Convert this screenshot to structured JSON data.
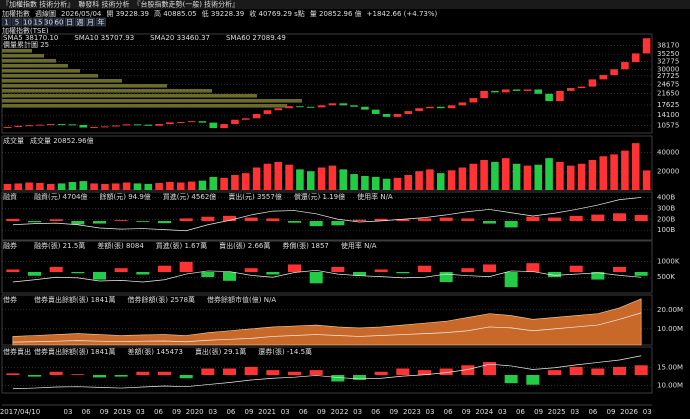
{
  "header": {
    "menu": [
      "『加權指數 技術分析』",
      "聯發科 技術分析",
      "『台股指數走勢(一般) 技術分析』"
    ],
    "title": "加權指數",
    "period": "週線圖",
    "date": "2026/05/04",
    "quote": [
      "開 39228.39",
      "高 40885.05",
      "低 39228.39",
      "收 40769.29 s點",
      "量 20852.96 億"
    ],
    "change": "+1842.66 (+4.73%)",
    "buttons": [
      "1",
      "5",
      "10",
      "15",
      "30",
      "60",
      "日",
      "週",
      "月",
      "年"
    ],
    "symbol": "加權指數(TSE)"
  },
  "chart_data": {
    "type": "candlestick",
    "sma": [
      {
        "text": "SMA5 38170.10",
        "color": "#ff7f50"
      },
      {
        "text": "SMA10 35707.93",
        "color": "#66ccff"
      },
      {
        "text": "SMA20 33460.37",
        "color": "#33dd33"
      },
      {
        "text": "SMA60 27089.49",
        "color": "#ffdd33"
      }
    ],
    "profile_label": "價量累計圖 25",
    "profile": [
      10,
      14,
      18,
      22,
      26,
      32,
      40,
      55,
      70,
      85,
      100,
      95
    ],
    "profile_color": "#6b6b2a",
    "ylim": [
      7900,
      42240
    ],
    "yticks": [
      38170,
      35250,
      32775,
      30000,
      27725,
      24675,
      21650,
      17625,
      14100,
      10575
    ],
    "up_color": "#ff3333",
    "down_color": "#22cc44",
    "values": [
      10000,
      10400,
      10600,
      10800,
      11000,
      10900,
      10700,
      9800,
      10000,
      10200,
      10500,
      10900,
      10800,
      10400,
      11000,
      11600,
      11700,
      12000,
      11500,
      9600,
      11000,
      12500,
      13000,
      14500,
      15800,
      16500,
      17200,
      17000,
      16800,
      17500,
      18200,
      17500,
      17000,
      16000,
      14500,
      13500,
      14500,
      15500,
      16500,
      17000,
      16500,
      17500,
      18500,
      20000,
      22500,
      22000,
      23000,
      22500,
      23000,
      21500,
      19000,
      22500,
      23500,
      24000,
      26500,
      28000,
      30000,
      32500,
      35500,
      40769.29
    ],
    "volume": {
      "label": "成交量",
      "legend": "成交量 20852.96億",
      "ylim": [
        0,
        57600
      ],
      "yticks": [
        40000,
        20000
      ],
      "values": [
        6500,
        7000,
        8000,
        7500,
        6500,
        7000,
        8500,
        9500,
        7000,
        6500,
        7000,
        8000,
        7000,
        6500,
        7500,
        8500,
        8000,
        9000,
        10000,
        14000,
        13000,
        16000,
        18000,
        24000,
        28000,
        30000,
        27000,
        22000,
        20000,
        24000,
        26000,
        22000,
        17000,
        15000,
        14000,
        12000,
        13000,
        16000,
        20000,
        22000,
        18000,
        21000,
        24000,
        28000,
        32000,
        30000,
        34000,
        28000,
        26000,
        27000,
        34000,
        30000,
        26000,
        28000,
        32000,
        36000,
        38000,
        42000,
        50000,
        20852.96
      ]
    },
    "panels": [
      {
        "label": "融資",
        "legend": [
          "融資(元) 4704億",
          "餘額(元) 94.9億",
          "買進(元) 4562億",
          "賣出(元) 3557億",
          "償還(元) 1.19億",
          "使用率 N/A"
        ],
        "legend_colors": [
          "#ff5555",
          "#ffdd33",
          "#ff55ff",
          "#ffdd33",
          "#ff5555",
          "#3399ff"
        ],
        "ylim": [
          10,
          450
        ],
        "yticks": [
          {
            "value": 400,
            "label": "400B"
          },
          {
            "value": 300,
            "label": "300B"
          },
          {
            "value": 200,
            "label": "200B"
          },
          {
            "value": 100,
            "label": "100B"
          }
        ],
        "line": [
          150,
          160,
          165,
          150,
          120,
          110,
          115,
          105,
          95,
          150,
          190,
          240,
          275,
          280,
          250,
          200,
          175,
          185,
          200,
          215,
          240,
          270,
          290,
          260,
          230,
          255,
          290,
          330,
          380,
          400
        ],
        "bar_lim": 40,
        "bars": [
          5,
          -3,
          4,
          -8,
          -6,
          2,
          -2,
          -5,
          6,
          10,
          12,
          8,
          6,
          -4,
          -12,
          -10,
          3,
          5,
          4,
          6,
          8,
          6,
          -6,
          -15,
          10,
          8,
          12,
          15,
          18,
          14
        ]
      },
      {
        "label": "融券",
        "legend": [
          "融券(張) 21.5萬",
          "差額(張) 8084",
          "買進(張) 1.67萬",
          "賣出(張) 2.66萬",
          "券償(張) 1857",
          "使用率 N/A"
        ],
        "legend_colors": [
          "#ff5555",
          "#ffdd33",
          "#ff55ff",
          "#ffdd33",
          "#ff5555",
          "#3399ff"
        ],
        "ylim": [
          0,
          1650
        ],
        "yticks": [
          {
            "value": 1000,
            "label": "1000K"
          },
          {
            "value": 500,
            "label": "500K"
          }
        ],
        "line": [
          350,
          420,
          500,
          480,
          380,
          400,
          350,
          420,
          600,
          700,
          680,
          560,
          500,
          650,
          720,
          600,
          550,
          520,
          480,
          500,
          600,
          550,
          520,
          700,
          680,
          560,
          600,
          640,
          560,
          500
        ],
        "bar_lim": 150,
        "bars": [
          20,
          -30,
          40,
          -10,
          -60,
          30,
          -20,
          50,
          80,
          -40,
          -70,
          30,
          -20,
          60,
          -90,
          40,
          -30,
          20,
          -10,
          50,
          -80,
          30,
          60,
          -120,
          70,
          -40,
          50,
          -60,
          40,
          -30
        ]
      },
      {
        "label": "借券",
        "legend": [
          "借券賣出餘額(張) 1841萬",
          "借券餘額(張) 2578萬",
          "借券餘額市值(億) N/A"
        ],
        "legend_colors": [
          "#ff5555",
          "#ffdd33",
          "#ff55ff"
        ],
        "ylim": [
          1.5,
          27.8
        ],
        "yticks": [
          {
            "value": 20,
            "label": "20.00M"
          },
          {
            "value": 10,
            "label": "10.00M"
          }
        ],
        "area": [
          6,
          6.5,
          7,
          7.5,
          7,
          6.5,
          6.8,
          7,
          6.5,
          8,
          9,
          10,
          11,
          11.5,
          12,
          11,
          10.5,
          11,
          12,
          13,
          14,
          16,
          18,
          17,
          15,
          16,
          17,
          18,
          21,
          25.8
        ],
        "area_color": "#c8692a",
        "line": [
          3,
          3.2,
          3.5,
          3.8,
          3.5,
          3.3,
          3.5,
          3.6,
          3.2,
          4,
          4.5,
          5,
          6,
          6.5,
          7,
          6.5,
          6,
          6.5,
          7,
          7.5,
          8,
          9,
          11,
          10.5,
          9,
          10,
          11,
          12,
          15,
          18.4
        ]
      },
      {
        "label": "借券賣出",
        "legend": [
          "借券賣出餘額(張) 1841萬",
          "差額(張) 145473",
          "賣出(張) 29.1萬",
          "還券(張) -14.5萬"
        ],
        "legend_colors": [
          "#ff5555",
          "#ffdd33",
          "#ff5555",
          "#ffdd33"
        ],
        "ylim": [
          7.8,
          20.9
        ],
        "yticks": [
          {
            "value": 15,
            "label": "15.00M"
          },
          {
            "value": 10,
            "label": "10.00M"
          }
        ],
        "line": [
          9,
          9.2,
          9.5,
          9.6,
          9.4,
          9.2,
          9.5,
          9.8,
          9.6,
          10.2,
          10.8,
          11.5,
          12,
          12.3,
          12.8,
          12.2,
          11.8,
          12,
          12.6,
          13,
          13.6,
          14.5,
          16,
          15.5,
          14.5,
          15,
          15.8,
          16.5,
          17.2,
          18.4
        ],
        "bar_lim": 1,
        "bars": [
          0.1,
          -0.1,
          0.2,
          0.05,
          -0.15,
          -0.1,
          0.2,
          0.2,
          -0.2,
          0.4,
          0.4,
          0.5,
          0.3,
          0.2,
          0.3,
          -0.4,
          -0.3,
          0.2,
          0.4,
          0.3,
          0.4,
          0.6,
          0.8,
          -0.5,
          -0.6,
          0.3,
          0.5,
          0.4,
          0.5,
          0.6
        ]
      }
    ],
    "xlabels": [
      "2017/04/10",
      "03",
      "06",
      "09",
      "2019",
      "03",
      "06",
      "09",
      "2020",
      "03",
      "06",
      "09",
      "2021",
      "03",
      "06",
      "09",
      "2022",
      "03",
      "06",
      "09",
      "2023",
      "03",
      "06",
      "09",
      "2024",
      "03",
      "06",
      "09",
      "2025",
      "03",
      "06",
      "09",
      "2026",
      "03"
    ]
  }
}
